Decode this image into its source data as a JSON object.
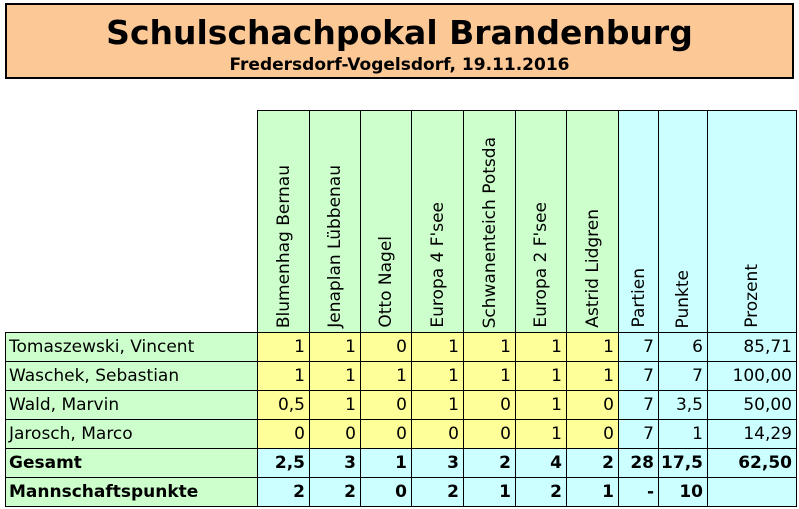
{
  "header": {
    "title": "Schulschachpokal Brandenburg",
    "subtitle": "Fredersdorf-Vogelsdorf, 19.11.2016"
  },
  "table": {
    "opponents": [
      "Blumenhag Bernau",
      "Jenaplan Lübbenau",
      "Otto Nagel",
      "Europa 4 F'see",
      "Schwanenteich Potsda",
      "Europa 2 F'see",
      "Astrid Lidgren"
    ],
    "stat_headers": [
      "Partien",
      "Punkte",
      "Prozent"
    ],
    "players": [
      {
        "name": "Tomaszewski, Vincent",
        "scores": [
          "1",
          "1",
          "0",
          "1",
          "1",
          "1",
          "1"
        ],
        "partien": "7",
        "punkte": "6",
        "prozent": "85,71"
      },
      {
        "name": "Waschek, Sebastian",
        "scores": [
          "1",
          "1",
          "1",
          "1",
          "1",
          "1",
          "1"
        ],
        "partien": "7",
        "punkte": "7",
        "prozent": "100,00"
      },
      {
        "name": "Wald, Marvin",
        "scores": [
          "0,5",
          "1",
          "0",
          "1",
          "0",
          "1",
          "0"
        ],
        "partien": "7",
        "punkte": "3,5",
        "prozent": "50,00"
      },
      {
        "name": "Jarosch, Marco",
        "scores": [
          "0",
          "0",
          "0",
          "0",
          "0",
          "1",
          "0"
        ],
        "partien": "7",
        "punkte": "1",
        "prozent": "14,29"
      }
    ],
    "total": {
      "name": "Gesamt",
      "scores": [
        "2,5",
        "3",
        "1",
        "3",
        "2",
        "4",
        "2"
      ],
      "partien": "28",
      "punkte": "17,5",
      "prozent": "62,50"
    },
    "team_points": {
      "name": "Mannschaftspunkte",
      "scores": [
        "2",
        "2",
        "0",
        "2",
        "1",
        "2",
        "1"
      ],
      "partien": "-",
      "punkte": "10",
      "prozent": ""
    }
  },
  "colors": {
    "banner": "#fcc896",
    "green": "#ccffcc",
    "yellow": "#ffff99",
    "blue": "#ccffff"
  }
}
